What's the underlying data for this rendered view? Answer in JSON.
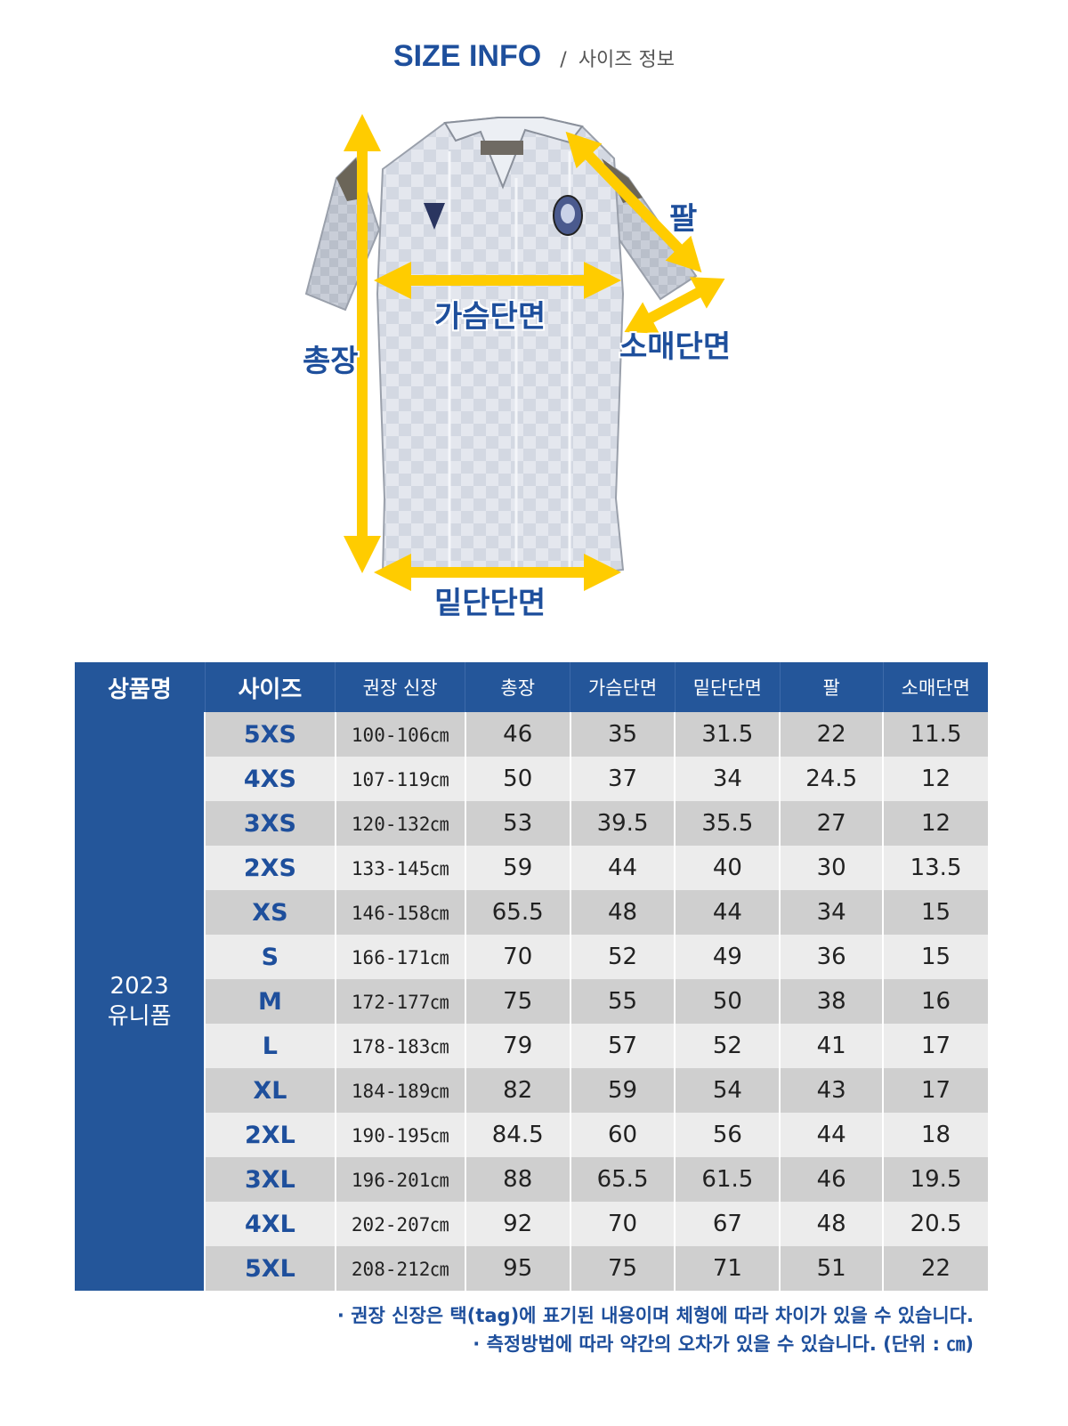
{
  "header": {
    "title_en": "SIZE INFO",
    "separator": "/",
    "title_ko": "사이즈 정보"
  },
  "diagram": {
    "labels": {
      "total_length": "총장",
      "chest_width": "가슴단면",
      "sleeve": "팔",
      "sleeve_opening": "소매단면",
      "hem_width": "밑단단면"
    },
    "arrow_color": "#ffcc00",
    "shirt_color": "#dfe3ea"
  },
  "table": {
    "headers": {
      "product": "상품명",
      "size": "사이즈",
      "height": "권장 신장",
      "length": "총장",
      "chest": "가슴단면",
      "hem": "밑단단면",
      "sleeve": "팔",
      "opening": "소매단면"
    },
    "product_name": {
      "line1": "2023",
      "line2": "유니폼"
    },
    "rows": [
      {
        "size": "5XS",
        "height": "100-106㎝",
        "length": "46",
        "chest": "35",
        "hem": "31.5",
        "sleeve": "22",
        "opening": "11.5"
      },
      {
        "size": "4XS",
        "height": "107-119㎝",
        "length": "50",
        "chest": "37",
        "hem": "34",
        "sleeve": "24.5",
        "opening": "12"
      },
      {
        "size": "3XS",
        "height": "120-132㎝",
        "length": "53",
        "chest": "39.5",
        "hem": "35.5",
        "sleeve": "27",
        "opening": "12"
      },
      {
        "size": "2XS",
        "height": "133-145㎝",
        "length": "59",
        "chest": "44",
        "hem": "40",
        "sleeve": "30",
        "opening": "13.5"
      },
      {
        "size": "XS",
        "height": "146-158㎝",
        "length": "65.5",
        "chest": "48",
        "hem": "44",
        "sleeve": "34",
        "opening": "15"
      },
      {
        "size": "S",
        "height": "166-171㎝",
        "length": "70",
        "chest": "52",
        "hem": "49",
        "sleeve": "36",
        "opening": "15"
      },
      {
        "size": "M",
        "height": "172-177㎝",
        "length": "75",
        "chest": "55",
        "hem": "50",
        "sleeve": "38",
        "opening": "16"
      },
      {
        "size": "L",
        "height": "178-183㎝",
        "length": "79",
        "chest": "57",
        "hem": "52",
        "sleeve": "41",
        "opening": "17"
      },
      {
        "size": "XL",
        "height": "184-189㎝",
        "length": "82",
        "chest": "59",
        "hem": "54",
        "sleeve": "43",
        "opening": "17"
      },
      {
        "size": "2XL",
        "height": "190-195㎝",
        "length": "84.5",
        "chest": "60",
        "hem": "56",
        "sleeve": "44",
        "opening": "18"
      },
      {
        "size": "3XL",
        "height": "196-201㎝",
        "length": "88",
        "chest": "65.5",
        "hem": "61.5",
        "sleeve": "46",
        "opening": "19.5"
      },
      {
        "size": "4XL",
        "height": "202-207㎝",
        "length": "92",
        "chest": "70",
        "hem": "67",
        "sleeve": "48",
        "opening": "20.5"
      },
      {
        "size": "5XL",
        "height": "208-212㎝",
        "length": "95",
        "chest": "75",
        "hem": "71",
        "sleeve": "51",
        "opening": "22"
      }
    ]
  },
  "notes": {
    "line1": "· 권장 신장은 택(tag)에 표기된 내용이며 체형에 따라 차이가 있을 수 있습니다.",
    "line2": "· 측정방법에 따라 약간의 오차가 있을 수 있습니다. (단위 : ㎝)"
  },
  "colors": {
    "brand_blue": "#24569a",
    "row_dark": "#cfcfcf",
    "row_light": "#ececec"
  }
}
